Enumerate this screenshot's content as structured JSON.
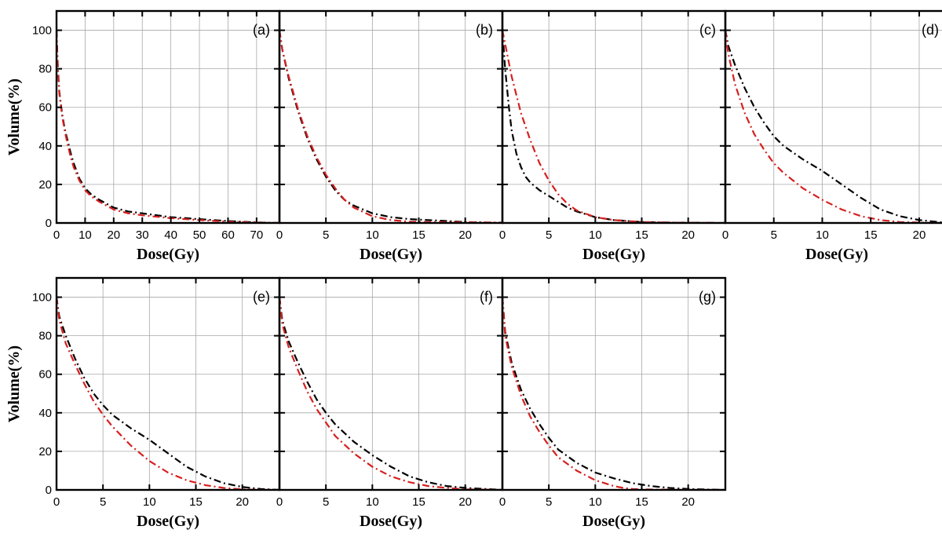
{
  "chart_data": [
    {
      "type": "line",
      "panel_label": "(a)",
      "xlabel": "Dose(Gy)",
      "ylabel": "Volume(%)",
      "xlim": [
        0,
        78
      ],
      "ylim": [
        0,
        110
      ],
      "xticks": [
        0,
        10,
        20,
        30,
        40,
        50,
        60,
        70
      ],
      "yticks": [
        0,
        20,
        40,
        60,
        80,
        100
      ],
      "grid": true,
      "series": [
        {
          "color": "#000000",
          "style": "dash-dot",
          "x": [
            0,
            0.5,
            1,
            2,
            3,
            4,
            5,
            6,
            8,
            10,
            12,
            15,
            20,
            25,
            30,
            40,
            50,
            60,
            70,
            78
          ],
          "y": [
            100,
            80,
            68,
            56,
            48,
            42,
            36,
            31,
            23,
            18,
            15,
            12,
            8,
            6,
            5,
            3,
            2,
            1,
            0.3,
            0
          ]
        },
        {
          "color": "#d62020",
          "style": "dash-dot",
          "x": [
            0,
            0.5,
            1,
            2,
            3,
            4,
            5,
            6,
            8,
            10,
            12,
            15,
            20,
            25,
            30,
            40,
            50,
            60,
            70,
            78
          ],
          "y": [
            100,
            78,
            67,
            55,
            47,
            40,
            34,
            29,
            22,
            17,
            14,
            11,
            7,
            5,
            4,
            2.5,
            1.5,
            0.7,
            0.2,
            0
          ]
        }
      ]
    },
    {
      "type": "line",
      "panel_label": "(b)",
      "xlabel": "Dose(Gy)",
      "ylabel": "",
      "xlim": [
        0,
        24
      ],
      "ylim": [
        0,
        110
      ],
      "xticks": [
        0,
        5,
        10,
        15,
        20
      ],
      "yticks": [
        0,
        20,
        40,
        60,
        80,
        100
      ],
      "grid": true,
      "series": [
        {
          "color": "#000000",
          "style": "dash-dot",
          "x": [
            0,
            0.3,
            1,
            2,
            3,
            4,
            5,
            6,
            7,
            8,
            10,
            12,
            14,
            16,
            18,
            20,
            22,
            24
          ],
          "y": [
            100,
            90,
            75,
            58,
            44,
            33,
            24,
            17,
            12,
            9,
            5,
            3,
            2,
            1.5,
            1,
            0.5,
            0.2,
            0
          ]
        },
        {
          "color": "#d62020",
          "style": "dash-dot",
          "x": [
            0,
            0.3,
            1,
            2,
            3,
            4,
            5,
            6,
            7,
            8,
            10,
            12,
            14,
            16,
            18,
            20,
            22,
            24
          ],
          "y": [
            100,
            90,
            76,
            59,
            45,
            34,
            25,
            18,
            12,
            8,
            3.5,
            1.5,
            0.7,
            0.5,
            0.5,
            0.4,
            0.3,
            0.2
          ]
        }
      ]
    },
    {
      "type": "line",
      "panel_label": "(c)",
      "xlabel": "Dose(Gy)",
      "ylabel": "",
      "xlim": [
        0,
        24
      ],
      "ylim": [
        0,
        110
      ],
      "xticks": [
        0,
        5,
        10,
        15,
        20
      ],
      "yticks": [
        0,
        20,
        40,
        60,
        80,
        100
      ],
      "grid": true,
      "series": [
        {
          "color": "#000000",
          "style": "dash-dot",
          "x": [
            0,
            0.3,
            0.7,
            1,
            1.5,
            2,
            2.5,
            3,
            4,
            5,
            6,
            7,
            8,
            10,
            12,
            15,
            18,
            24
          ],
          "y": [
            100,
            80,
            60,
            48,
            36,
            29,
            24,
            21,
            17,
            14,
            11,
            8,
            6,
            3,
            1.5,
            0.5,
            0.2,
            0
          ]
        },
        {
          "color": "#d62020",
          "style": "dash-dot",
          "x": [
            0,
            0.5,
            1,
            2,
            3,
            4,
            5,
            6,
            7,
            8,
            10,
            12,
            15,
            18,
            24
          ],
          "y": [
            100,
            88,
            76,
            57,
            43,
            31,
            22,
            15,
            10,
            6.5,
            3,
            1.5,
            0.5,
            0.2,
            0
          ]
        }
      ]
    },
    {
      "type": "line",
      "panel_label": "(d)",
      "xlabel": "Dose(Gy)",
      "ylabel": "",
      "xlim": [
        0,
        23
      ],
      "ylim": [
        0,
        110
      ],
      "xticks": [
        0,
        5,
        10,
        15,
        20
      ],
      "yticks": [
        0,
        20,
        40,
        60,
        80,
        100
      ],
      "grid": true,
      "series": [
        {
          "color": "#000000",
          "style": "dash-dot",
          "x": [
            0,
            0.3,
            1,
            2,
            3,
            4,
            5,
            6,
            8,
            10,
            12,
            14,
            16,
            18,
            20,
            22,
            23
          ],
          "y": [
            100,
            92,
            82,
            70,
            60,
            52,
            45,
            40,
            33,
            27,
            20,
            13,
            7,
            3.5,
            1.5,
            0.5,
            0
          ]
        },
        {
          "color": "#d62020",
          "style": "dash-dot",
          "x": [
            0,
            0.3,
            1,
            2,
            3,
            4,
            5,
            6,
            8,
            10,
            12,
            14,
            16,
            18,
            20,
            22,
            23
          ],
          "y": [
            100,
            88,
            72,
            57,
            46,
            38,
            31,
            26,
            18,
            12,
            7,
            3.5,
            1.5,
            0.5,
            0.2,
            0,
            0
          ]
        }
      ]
    },
    {
      "type": "line",
      "panel_label": "(e)",
      "xlabel": "Dose(Gy)",
      "ylabel": "Volume(%)",
      "xlim": [
        0,
        24
      ],
      "ylim": [
        0,
        110
      ],
      "xticks": [
        0,
        5,
        10,
        15,
        20
      ],
      "yticks": [
        0,
        20,
        40,
        60,
        80,
        100
      ],
      "grid": true,
      "series": [
        {
          "color": "#000000",
          "style": "dash-dot",
          "x": [
            0,
            0.3,
            1,
            2,
            3,
            4,
            5,
            6,
            8,
            10,
            12,
            14,
            16,
            18,
            20,
            22,
            24
          ],
          "y": [
            100,
            90,
            80,
            68,
            58,
            50,
            44,
            39,
            32,
            26,
            19,
            12,
            7,
            3.5,
            1.5,
            0.5,
            0
          ]
        },
        {
          "color": "#d62020",
          "style": "dash-dot",
          "x": [
            0,
            0.3,
            1,
            2,
            3,
            4,
            5,
            6,
            8,
            10,
            12,
            14,
            16,
            18,
            20,
            22,
            24
          ],
          "y": [
            100,
            88,
            76,
            65,
            55,
            46,
            39,
            33,
            23,
            15,
            9,
            5,
            2.5,
            1,
            0.3,
            0,
            0
          ]
        }
      ]
    },
    {
      "type": "line",
      "panel_label": "(f)",
      "xlabel": "Dose(Gy)",
      "ylabel": "",
      "xlim": [
        0,
        24
      ],
      "ylim": [
        0,
        110
      ],
      "xticks": [
        0,
        5,
        10,
        15,
        20
      ],
      "yticks": [
        0,
        20,
        40,
        60,
        80,
        100
      ],
      "grid": true,
      "series": [
        {
          "color": "#000000",
          "style": "dash-dot",
          "x": [
            0,
            0.3,
            1,
            2,
            3,
            4,
            5,
            6,
            8,
            10,
            12,
            14,
            16,
            18,
            20,
            24
          ],
          "y": [
            100,
            88,
            77,
            66,
            56,
            47,
            40,
            34,
            25,
            18,
            12,
            7,
            4,
            2,
            1,
            0
          ]
        },
        {
          "color": "#d62020",
          "style": "dash-dot",
          "x": [
            0,
            0.3,
            1,
            2,
            3,
            4,
            5,
            6,
            8,
            10,
            12,
            14,
            16,
            18,
            20,
            24
          ],
          "y": [
            100,
            86,
            74,
            62,
            51,
            42,
            35,
            28,
            19,
            12,
            7,
            4,
            2,
            1,
            0.3,
            0
          ]
        }
      ]
    },
    {
      "type": "line",
      "panel_label": "(g)",
      "xlabel": "Dose(Gy)",
      "ylabel": "",
      "xlim": [
        0,
        24
      ],
      "ylim": [
        0,
        110
      ],
      "xticks": [
        0,
        5,
        10,
        15,
        20
      ],
      "yticks": [
        0,
        20,
        40,
        60,
        80,
        100
      ],
      "grid": true,
      "series": [
        {
          "color": "#000000",
          "style": "dash-dot",
          "x": [
            0,
            0.3,
            1,
            2,
            3,
            4,
            5,
            6,
            8,
            10,
            12,
            14,
            16,
            18,
            20,
            22,
            24
          ],
          "y": [
            100,
            82,
            66,
            52,
            42,
            34,
            27,
            21,
            14,
            9,
            6,
            3.5,
            2,
            1,
            0.5,
            0.2,
            0
          ]
        },
        {
          "color": "#d62020",
          "style": "dash-dot",
          "x": [
            0,
            0.3,
            1,
            2,
            3,
            4,
            5,
            6,
            8,
            10,
            12,
            13,
            14,
            16,
            20,
            24
          ],
          "y": [
            100,
            80,
            64,
            49,
            38,
            30,
            23,
            17,
            10,
            5,
            2,
            1,
            0.5,
            0.2,
            0,
            0
          ]
        }
      ]
    }
  ]
}
